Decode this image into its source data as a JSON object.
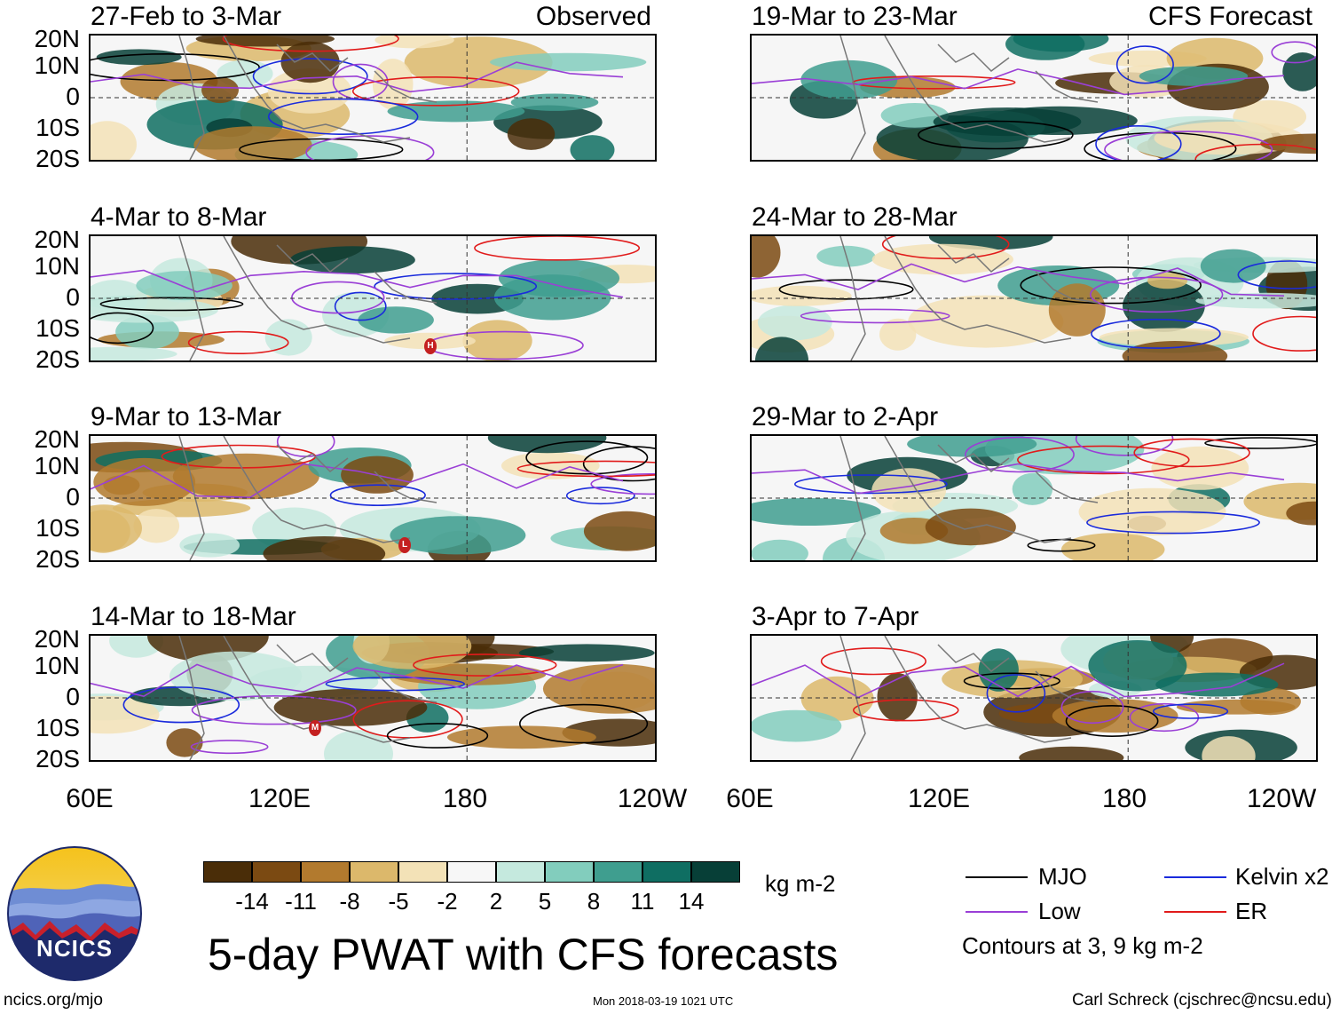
{
  "panels": {
    "left": [
      {
        "title": "27-Feb to 3-Mar",
        "label": "Observed"
      },
      {
        "title": "4-Mar to 8-Mar",
        "label": ""
      },
      {
        "title": "9-Mar to 13-Mar",
        "label": ""
      },
      {
        "title": "14-Mar to 18-Mar",
        "label": ""
      }
    ],
    "right": [
      {
        "title": "19-Mar to 23-Mar",
        "label": "CFS Forecast"
      },
      {
        "title": "24-Mar to 28-Mar",
        "label": ""
      },
      {
        "title": "29-Mar to 2-Apr",
        "label": ""
      },
      {
        "title": "3-Apr to 7-Apr",
        "label": ""
      }
    ]
  },
  "lat_labels": [
    "20N",
    "10N",
    "0",
    "10S",
    "20S"
  ],
  "lon_labels": [
    "60E",
    "120E",
    "180",
    "120W"
  ],
  "storm_markers": [
    "H",
    "L",
    "M"
  ],
  "colorbar": {
    "ticks": [
      "-14",
      "-11",
      "-8",
      "-5",
      "-2",
      "2",
      "5",
      "8",
      "11",
      "14"
    ],
    "colors": [
      "#4a2d08",
      "#7b4a12",
      "#b27a2e",
      "#dcb86b",
      "#f3e2b7",
      "#f7f7f7",
      "#c5e9de",
      "#82cdbd",
      "#3f9e8f",
      "#0f6e62",
      "#073f37"
    ],
    "units": "kg m-2"
  },
  "main_title": "5-day PWAT with CFS forecasts",
  "logo_text": "NCICS",
  "footer": {
    "left": "ncics.org/mjo",
    "center": "Mon 2018-03-19 1021 UTC",
    "right": "Carl Schreck (cjschrec@ncsu.edu)"
  },
  "legend": {
    "items": [
      {
        "label": "MJO",
        "color": "#000000"
      },
      {
        "label": "Kelvin x2",
        "color": "#1a2bdc"
      },
      {
        "label": "Low",
        "color": "#9a3fd6"
      },
      {
        "label": "ER",
        "color": "#e11b1b"
      }
    ],
    "note": "Contours at 3, 9 kg m-2"
  }
}
